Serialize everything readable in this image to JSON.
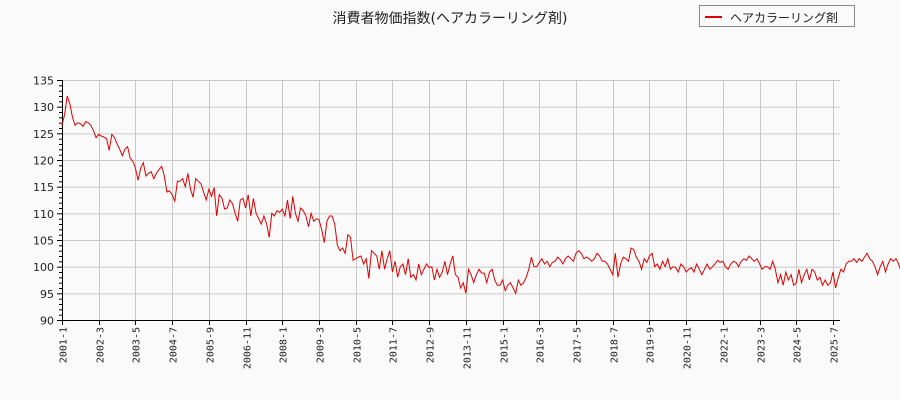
{
  "chart_data": {
    "type": "line",
    "title": "消費者物価指数(ヘアカラーリング剤)",
    "xlabel": "",
    "ylabel": "",
    "ylim": [
      90,
      135
    ],
    "yticks": [
      90,
      95,
      100,
      105,
      110,
      115,
      120,
      125,
      130,
      135
    ],
    "xticks": [
      "2001-1",
      "2002-3",
      "2003-5",
      "2004-7",
      "2005-9",
      "2006-11",
      "2008-1",
      "2009-3",
      "2010-5",
      "2011-7",
      "2012-9",
      "2013-11",
      "2015-1",
      "2016-3",
      "2017-5",
      "2018-7",
      "2019-9",
      "2020-11",
      "2022-1",
      "2023-3",
      "2024-5",
      "2025-7"
    ],
    "x_start": "2001-1",
    "x_frequency": "monthly",
    "grid": true,
    "legend_position": "top-right",
    "series": [
      {
        "name": "ヘアカラーリング剤",
        "color": "#dd0000",
        "values": [
          126.5,
          128.5,
          132.0,
          130.5,
          128.0,
          126.5,
          127.0,
          126.8,
          126.3,
          127.2,
          127.0,
          126.5,
          125.5,
          124.2,
          124.8,
          124.5,
          124.3,
          124.0,
          121.8,
          124.8,
          124.2,
          123.0,
          122.0,
          120.8,
          122.0,
          122.5,
          120.3,
          119.8,
          118.5,
          116.2,
          118.5,
          119.5,
          117.0,
          117.5,
          117.8,
          116.5,
          117.5,
          118.2,
          118.8,
          117.0,
          114.0,
          114.2,
          113.5,
          112.3,
          116.0,
          116.0,
          116.5,
          115.0,
          117.5,
          114.5,
          113.0,
          116.5,
          116.0,
          115.5,
          114.0,
          112.5,
          114.5,
          113.2,
          114.8,
          109.5,
          113.5,
          112.8,
          110.8,
          111.0,
          112.5,
          111.8,
          110.0,
          108.5,
          112.5,
          112.8,
          111.0,
          113.5,
          109.5,
          112.8,
          110.0,
          109.0,
          108.0,
          109.5,
          108.0,
          105.5,
          110.0,
          109.5,
          110.5,
          110.2,
          110.8,
          109.5,
          112.5,
          109.0,
          113.2,
          110.0,
          108.5,
          111.0,
          110.5,
          109.5,
          107.5,
          110.0,
          108.5,
          109.0,
          108.8,
          107.0,
          104.5,
          108.5,
          109.5,
          109.5,
          108.0,
          104.0,
          103.0,
          103.5,
          102.5,
          106.0,
          105.5,
          101.2,
          101.5,
          101.8,
          102.0,
          100.5,
          101.5,
          97.8,
          103.0,
          102.5,
          102.0,
          99.5,
          103.0,
          99.5,
          101.5,
          103.0,
          99.0,
          101.0,
          98.0,
          100.0,
          100.5,
          98.5,
          101.5,
          98.0,
          98.5,
          97.5,
          100.5,
          98.5,
          99.5,
          100.5,
          99.8,
          100.0,
          97.5,
          99.5,
          98.0,
          99.0,
          101.0,
          98.5,
          100.5,
          102.0,
          98.5,
          98.0,
          96.0,
          97.0,
          95.0,
          99.5,
          98.5,
          97.0,
          98.5,
          99.5,
          98.8,
          98.8,
          97.0,
          99.0,
          99.5,
          97.5,
          96.5,
          96.5,
          97.5,
          95.5,
          96.5,
          97.0,
          96.0,
          95.0,
          97.5,
          96.5,
          97.0,
          98.0,
          99.5,
          101.8,
          100.0,
          100.0,
          100.8,
          101.5,
          100.5,
          101.0,
          100.0,
          100.8,
          101.0,
          101.8,
          101.3,
          100.5,
          101.5,
          102.0,
          101.5,
          101.0,
          102.5,
          103.0,
          102.5,
          101.5,
          101.8,
          101.5,
          101.0,
          101.5,
          102.5,
          102.0,
          101.0,
          101.0,
          100.5,
          99.5,
          98.5,
          102.5,
          98.0,
          100.5,
          101.8,
          101.5,
          101.0,
          103.5,
          103.2,
          101.8,
          101.0,
          99.5,
          101.5,
          100.8,
          102.0,
          102.5,
          100.0,
          100.5,
          99.5,
          101.0,
          100.0,
          101.5,
          99.5,
          100.0,
          99.8,
          99.0,
          100.5,
          100.0,
          99.0,
          99.5,
          99.8,
          99.0,
          100.5,
          99.5,
          98.5,
          99.5,
          100.5,
          99.5,
          100.0,
          100.5,
          101.2,
          100.8,
          101.0,
          100.0,
          99.5,
          100.5,
          101.0,
          100.8,
          100.0,
          101.0,
          101.5,
          101.2,
          102.0,
          101.5,
          101.0,
          101.5,
          100.5,
          99.5,
          100.0,
          100.0,
          99.5,
          101.0,
          99.5,
          97.0,
          98.5,
          96.5,
          99.0,
          97.5,
          98.5,
          96.5,
          97.0,
          99.5,
          97.0,
          98.5,
          99.5,
          97.5,
          99.5,
          99.0,
          97.5,
          98.0,
          96.5,
          97.5,
          96.5,
          97.0,
          99.0,
          96.0,
          98.0,
          99.5,
          99.0,
          100.5,
          101.0,
          101.0,
          101.5,
          100.8,
          101.5,
          101.0,
          101.8,
          102.5,
          101.5,
          101.0,
          100.0,
          98.5,
          100.0,
          101.0,
          99.0,
          100.5,
          101.5,
          101.0,
          101.5,
          100.5,
          99.0,
          98.5,
          98.0,
          99.0,
          100.0,
          99.5,
          100.0,
          99.0,
          98.5,
          97.5,
          99.0,
          101.0,
          101.0,
          101.5,
          101.0,
          101.5,
          101.8,
          102.5,
          102.0,
          102.8,
          102.5,
          103.0,
          102.5,
          99.0,
          101.0,
          100.0,
          101.0,
          100.5,
          101.5,
          101.0,
          100.5,
          100.5,
          101.0,
          100.5,
          100.0,
          101.5,
          100.5,
          101.0,
          101.5
        ]
      }
    ]
  },
  "legend": {
    "label": "ヘアカラーリング剤"
  }
}
